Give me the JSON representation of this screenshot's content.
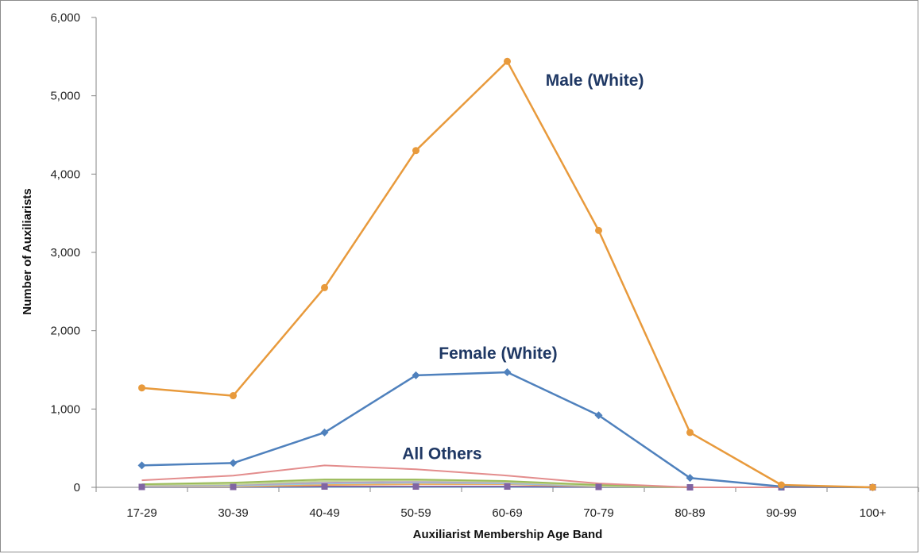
{
  "chart_data": {
    "type": "line",
    "title": "",
    "xlabel": "Auxiliarist Membership Age Band",
    "ylabel": "Number of Auxiliarists",
    "categories": [
      "17-29",
      "30-39",
      "40-49",
      "50-59",
      "60-69",
      "70-79",
      "80-89",
      "90-99",
      "100+"
    ],
    "ylim": [
      0,
      6000
    ],
    "yticks": [
      "0",
      "1,000",
      "2,000",
      "3,000",
      "4,000",
      "5,000",
      "6,000"
    ],
    "yticks_values": [
      0,
      1000,
      2000,
      3000,
      4000,
      5000,
      6000
    ],
    "grid": false,
    "legend": "none",
    "series": [
      {
        "values": [
          1270,
          1170,
          2550,
          4300,
          5440,
          3280,
          700,
          30,
          0
        ],
        "color": "#e89a3c",
        "marker": "circle"
      },
      {
        "values": [
          280,
          310,
          700,
          1430,
          1470,
          920,
          120,
          10,
          0
        ],
        "color": "#4f81bd",
        "marker": "diamond"
      },
      {
        "values": [
          90,
          150,
          280,
          230,
          150,
          50,
          0,
          0,
          0
        ],
        "color": "#e38d8d",
        "marker": "none"
      },
      {
        "values": [
          40,
          60,
          100,
          100,
          80,
          30,
          0,
          0,
          0
        ],
        "color": "#9bbb59",
        "marker": "none"
      },
      {
        "values": [
          30,
          40,
          80,
          90,
          70,
          20,
          0,
          0,
          0
        ],
        "color": "#c3d69b",
        "marker": "none"
      },
      {
        "values": [
          20,
          30,
          60,
          70,
          60,
          20,
          0,
          0,
          0
        ],
        "color": "#b3a2c7",
        "marker": "none"
      },
      {
        "values": [
          15,
          20,
          50,
          60,
          50,
          15,
          0,
          0,
          0
        ],
        "color": "#93cddd",
        "marker": "none"
      },
      {
        "values": [
          10,
          10,
          30,
          40,
          40,
          10,
          0,
          0,
          0
        ],
        "color": "#f2ad5a",
        "marker": "none"
      },
      {
        "values": [
          5,
          5,
          10,
          10,
          10,
          5,
          0,
          0,
          0
        ],
        "color": "#8064a2",
        "marker": "square"
      },
      {
        "values": [
          2,
          2,
          5,
          5,
          5,
          2,
          0,
          0,
          0
        ],
        "color": "#4bacc6",
        "marker": "none"
      }
    ],
    "annotations": [
      {
        "text": "Male (White)",
        "x": 4.42,
        "y": 5130
      },
      {
        "text": "Female (White)",
        "x": 3.25,
        "y": 1640
      },
      {
        "text": "All Others",
        "x": 2.85,
        "y": 360
      }
    ]
  }
}
